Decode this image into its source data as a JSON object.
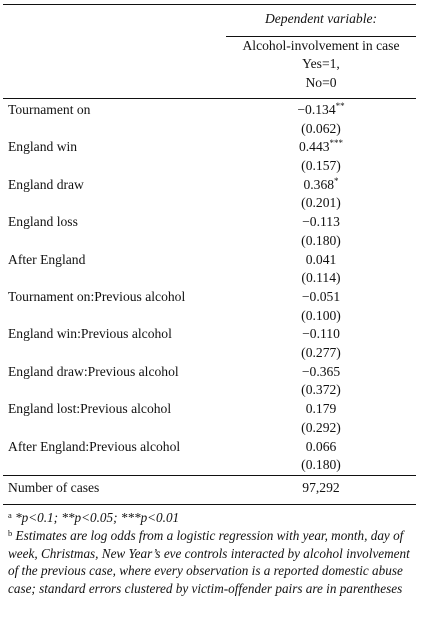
{
  "header": {
    "dependent_variable": "Dependent variable:",
    "outcome_line1": "Alcohol-involvement in case",
    "outcome_line2": "Yes=1,",
    "outcome_line3": "No=0"
  },
  "rows": [
    {
      "label": "Tournament on",
      "estimate": "−0.134",
      "stars": "**",
      "se": "(0.062)"
    },
    {
      "label": "England win",
      "estimate": "0.443",
      "stars": "***",
      "se": "(0.157)"
    },
    {
      "label": "England draw",
      "estimate": "0.368",
      "stars": "*",
      "se": "(0.201)"
    },
    {
      "label": "England loss",
      "estimate": "−0.113",
      "stars": "",
      "se": "(0.180)"
    },
    {
      "label": "After England",
      "estimate": "0.041",
      "stars": "",
      "se": "(0.114)"
    },
    {
      "label": "Tournament on:Previous alcohol",
      "estimate": "−0.051",
      "stars": "",
      "se": "(0.100)"
    },
    {
      "label": "England win:Previous alcohol",
      "estimate": "−0.110",
      "stars": "",
      "se": "(0.277)"
    },
    {
      "label": "England draw:Previous alcohol",
      "estimate": "−0.365",
      "stars": "",
      "se": "(0.372)"
    },
    {
      "label": "England lost:Previous alcohol",
      "estimate": "0.179",
      "stars": "",
      "se": "(0.292)"
    },
    {
      "label": "After England:Previous alcohol",
      "estimate": "0.066",
      "stars": "",
      "se": "(0.180)"
    }
  ],
  "cases": {
    "label": "Number of cases",
    "value": "97,292"
  },
  "notes": {
    "a_marker": "a",
    "a_text": "*p<0.1; **p<0.05; ***p<0.01",
    "b_marker": "b",
    "b_text": "Estimates are log odds from a logistic regression with year, month, day of week, Christmas, New Year’s eve controls interacted by alcohol involvement of the previous case, where every observation is a reported domestic abuse case; standard errors clustered by victim-offender pairs are in parentheses"
  }
}
